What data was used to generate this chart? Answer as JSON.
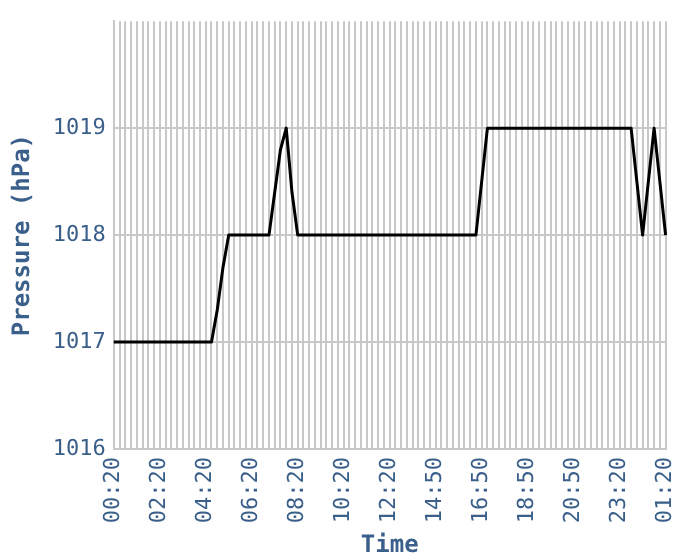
{
  "chart_data": {
    "type": "line",
    "xlabel": "Time",
    "ylabel": "Pressure (hPa)",
    "categories": [
      "00:20",
      null,
      null,
      null,
      null,
      null,
      null,
      null,
      "02:20",
      null,
      null,
      null,
      null,
      null,
      null,
      null,
      "04:20",
      null,
      null,
      null,
      null,
      null,
      null,
      null,
      "06:20",
      null,
      null,
      null,
      null,
      null,
      null,
      null,
      "08:20",
      null,
      null,
      null,
      null,
      null,
      null,
      null,
      "10:20",
      null,
      null,
      null,
      null,
      null,
      null,
      null,
      "12:20",
      null,
      null,
      null,
      null,
      null,
      null,
      null,
      "14:50",
      null,
      null,
      null,
      null,
      null,
      null,
      null,
      "16:50",
      null,
      null,
      null,
      null,
      null,
      null,
      null,
      "18:50",
      null,
      null,
      null,
      null,
      null,
      null,
      null,
      "20:50",
      null,
      null,
      null,
      null,
      null,
      null,
      null,
      "23:20",
      null,
      null,
      null,
      null,
      null,
      null,
      null,
      "01:20"
    ],
    "series": [
      {
        "color": "#000000",
        "values": [
          1017,
          1017,
          1017,
          1017,
          1017,
          1017,
          1017,
          1017,
          1017,
          1017,
          1017,
          1017,
          1017,
          1017,
          1017,
          1017,
          1017,
          1017,
          1017.3,
          1017.7,
          1018,
          1018,
          1018,
          1018,
          1018,
          1018,
          1018,
          1018,
          1018.4,
          1018.8,
          1019,
          1018.4,
          1018,
          1018,
          1018,
          1018,
          1018,
          1018,
          1018,
          1018,
          1018,
          1018,
          1018,
          1018,
          1018,
          1018,
          1018,
          1018,
          1018,
          1018,
          1018,
          1018,
          1018,
          1018,
          1018,
          1018,
          1018,
          1018,
          1018,
          1018,
          1018,
          1018,
          1018,
          1018,
          1018.5,
          1019,
          1019,
          1019,
          1019,
          1019,
          1019,
          1019,
          1019,
          1019,
          1019,
          1019,
          1019,
          1019,
          1019,
          1019,
          1019,
          1019,
          1019,
          1019,
          1019,
          1019,
          1019,
          1019,
          1019,
          1019,
          1019,
          1018.5,
          1018,
          1018.5,
          1019,
          1018.5,
          1018
        ]
      }
    ],
    "ylim": [
      1016,
      1020
    ],
    "yticks": [
      1016,
      1017,
      1018,
      1019
    ],
    "grid": true,
    "legend": false,
    "marker": "none",
    "line_style": "solid"
  }
}
